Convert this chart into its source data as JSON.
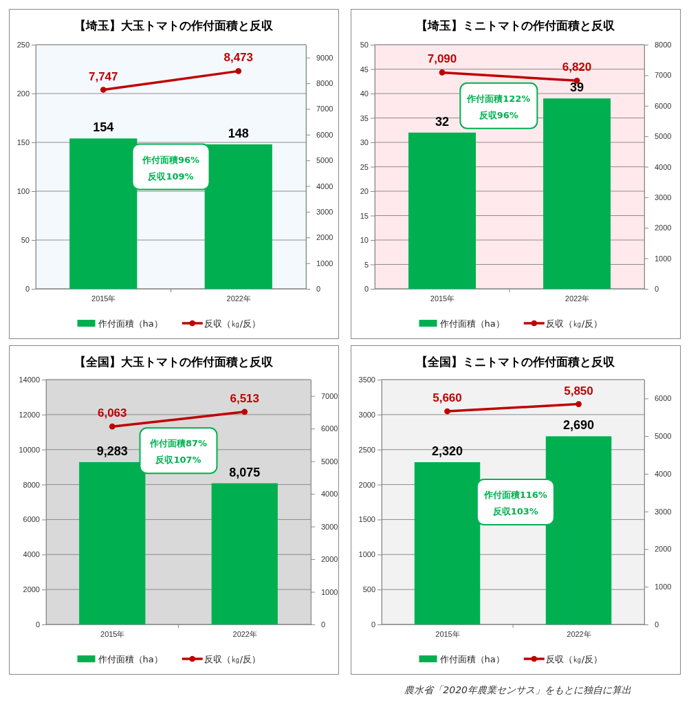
{
  "chart_data": [
    {
      "type": "bar",
      "title": "【埼玉】大玉トマトの作付面積と反収",
      "categories": [
        "2015年",
        "2022年"
      ],
      "series": [
        {
          "name": "作付面積（ha）",
          "type": "bar",
          "color": "#00b050",
          "values": [
            154,
            148
          ],
          "value_labels": [
            "154",
            "148"
          ]
        },
        {
          "name": "反収（㎏/反）",
          "type": "line",
          "axis": "y2",
          "color": "#c00000",
          "values": [
            7747,
            8473
          ],
          "value_labels": [
            "7,747",
            "8,473"
          ]
        }
      ],
      "ylim": [
        0,
        250
      ],
      "yticks": [
        0,
        50,
        100,
        150,
        200,
        250
      ],
      "y2lim": [
        0,
        9500
      ],
      "y2ticks": [
        0,
        1000,
        2000,
        3000,
        4000,
        5000,
        6000,
        7000,
        8000,
        9000
      ],
      "grid": "y",
      "legend": "bottom",
      "marker": "circle",
      "annotations": [
        "作付面積96%\n反収109%"
      ]
    },
    {
      "type": "bar",
      "title": "【埼玉】ミニトマトの作付面積と反収",
      "categories": [
        "2015年",
        "2022年"
      ],
      "series": [
        {
          "name": "作付面積（ha）",
          "type": "bar",
          "color": "#00b050",
          "values": [
            32,
            39
          ],
          "value_labels": [
            "32",
            "39"
          ]
        },
        {
          "name": "反収（㎏/反）",
          "type": "line",
          "axis": "y2",
          "color": "#c00000",
          "values": [
            7090,
            6820
          ],
          "value_labels": [
            "7,090",
            "6,820"
          ]
        }
      ],
      "ylim": [
        0,
        50
      ],
      "yticks": [
        0,
        5,
        10,
        15,
        20,
        25,
        30,
        35,
        40,
        45,
        50
      ],
      "y2lim": [
        0,
        8000
      ],
      "y2ticks": [
        0,
        1000,
        2000,
        3000,
        4000,
        5000,
        6000,
        7000,
        8000
      ],
      "grid": "y",
      "legend": "bottom",
      "marker": "circle",
      "annotations": [
        "作付面積122%\n反収96%"
      ]
    },
    {
      "type": "bar",
      "title": "【全国】大玉トマトの作付面積と反収",
      "categories": [
        "2015年",
        "2022年"
      ],
      "series": [
        {
          "name": "作付面積（ha）",
          "type": "bar",
          "color": "#00b050",
          "values": [
            9283,
            8075
          ],
          "value_labels": [
            "9,283",
            "8,075"
          ]
        },
        {
          "name": "反収（㎏/反）",
          "type": "line",
          "axis": "y2",
          "color": "#c00000",
          "values": [
            6063,
            6513
          ],
          "value_labels": [
            "6,063",
            "6,513"
          ]
        }
      ],
      "ylim": [
        0,
        14000
      ],
      "yticks": [
        0,
        2000,
        4000,
        6000,
        8000,
        10000,
        12000,
        14000
      ],
      "y2lim": [
        0,
        7500
      ],
      "y2ticks": [
        0,
        1000,
        2000,
        3000,
        4000,
        5000,
        6000,
        7000
      ],
      "grid": "y",
      "legend": "bottom",
      "marker": "circle",
      "annotations": [
        "作付面積87%\n反収107%"
      ]
    },
    {
      "type": "bar",
      "title": "【全国】ミニトマトの作付面積と反収",
      "categories": [
        "2015年",
        "2022年"
      ],
      "series": [
        {
          "name": "作付面積（ha）",
          "type": "bar",
          "color": "#00b050",
          "values": [
            2320,
            2690
          ],
          "value_labels": [
            "2,320",
            "2,690"
          ]
        },
        {
          "name": "反収（㎏/反）",
          "type": "line",
          "axis": "y2",
          "color": "#c00000",
          "values": [
            5660,
            5850
          ],
          "value_labels": [
            "5,660",
            "5,850"
          ]
        }
      ],
      "ylim": [
        0,
        3500
      ],
      "yticks": [
        0,
        500,
        1000,
        1500,
        2000,
        2500,
        3000,
        3500
      ],
      "y2lim": [
        0,
        6500
      ],
      "y2ticks": [
        0,
        1000,
        2000,
        3000,
        4000,
        5000,
        6000
      ],
      "grid": "y",
      "legend": "bottom",
      "marker": "circle",
      "annotations": [
        "作付面積116%\n反収103%",
        "農水省「2020年農業センサス」をもとに独自に算出"
      ]
    }
  ]
}
